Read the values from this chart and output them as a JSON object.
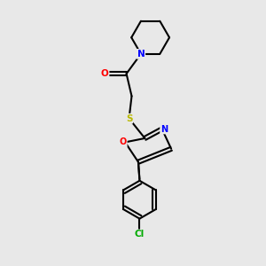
{
  "bg_color": "#e8e8e8",
  "bond_color": "#000000",
  "bond_width": 1.5,
  "atom_colors": {
    "N": "#0000ff",
    "O_carbonyl": "#ff0000",
    "S": "#b8b800",
    "O_oxazole": "#ff0000",
    "N_oxazole": "#0000ff",
    "Cl": "#00aa00",
    "C": "#000000"
  },
  "fig_width": 3.0,
  "fig_height": 3.0,
  "dpi": 100
}
